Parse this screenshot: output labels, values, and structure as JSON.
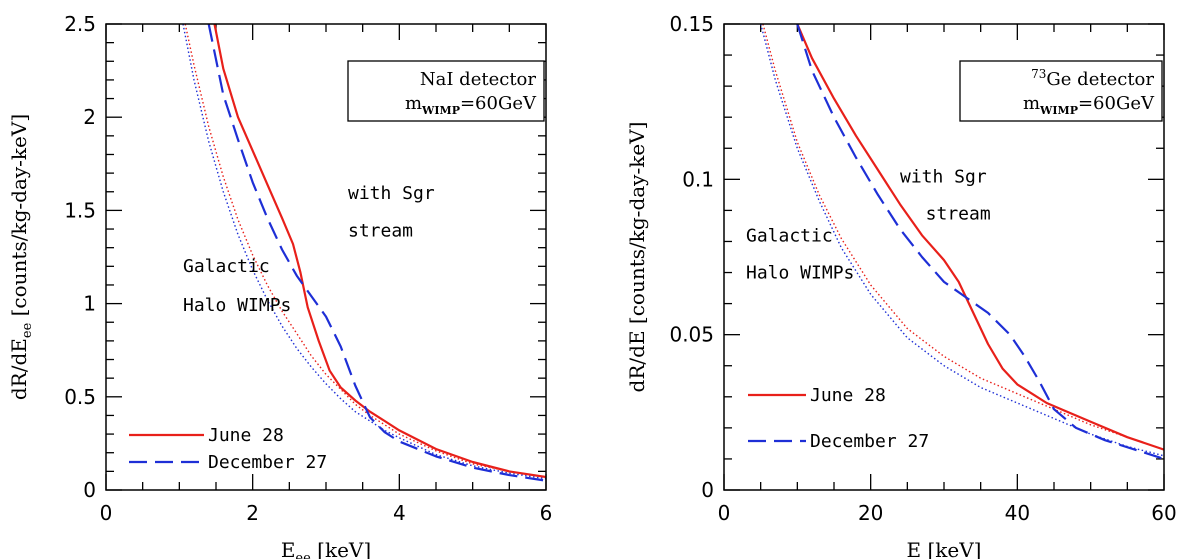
{
  "chart_data": [
    {
      "type": "line",
      "xlabel": "E",
      "xlabel_sub": "ee",
      "xlabel_unit": " [keV]",
      "ylabel": "dR/dE",
      "ylabel_sub": "ee",
      "ylabel_unit": " [counts/kg-day-keV]",
      "xlim": [
        0,
        6
      ],
      "ylim": [
        0,
        2.5
      ],
      "xticks": [
        0,
        2,
        4,
        6
      ],
      "xtick_labels": [
        "0",
        "2",
        "4",
        "6"
      ],
      "yticks": [
        0,
        0.5,
        1,
        1.5,
        2,
        2.5
      ],
      "ytick_labels": [
        "0",
        "0.5",
        "1",
        "1.5",
        "2",
        "2.5"
      ],
      "box": {
        "line1": "NaI detector",
        "line2_main": "m",
        "line2_sub": "WIMP",
        "line2_rest": "=60GeV"
      },
      "annotations": [
        {
          "text": "with Sgr",
          "x": 3.3,
          "y": 1.56
        },
        {
          "text": "stream",
          "x": 3.3,
          "y": 1.36
        },
        {
          "text": "Galactic",
          "x": 1.05,
          "y": 1.17
        },
        {
          "text": "Halo WIMPs",
          "x": 1.05,
          "y": 0.96
        }
      ],
      "legend": [
        {
          "label": "June 28",
          "style": "solid",
          "color": "#e8201a"
        },
        {
          "label": "December 27",
          "style": "dashed",
          "color": "#1e2fd6"
        }
      ],
      "series": [
        {
          "name": "June 28",
          "style": "solid",
          "color": "#e8201a",
          "x": [
            1.48,
            1.6,
            1.8,
            2.0,
            2.2,
            2.4,
            2.55,
            2.65,
            2.75,
            2.9,
            3.05,
            3.2,
            3.4,
            3.6,
            3.8,
            4.0,
            4.5,
            5.0,
            5.5,
            6.0
          ],
          "y": [
            2.5,
            2.26,
            2.0,
            1.82,
            1.64,
            1.46,
            1.32,
            1.17,
            0.98,
            0.8,
            0.64,
            0.55,
            0.48,
            0.42,
            0.37,
            0.32,
            0.22,
            0.15,
            0.1,
            0.07
          ]
        },
        {
          "name": "December 27",
          "style": "dashed",
          "color": "#1e2fd6",
          "x": [
            1.4,
            1.6,
            1.8,
            2.0,
            2.2,
            2.4,
            2.6,
            2.8,
            3.0,
            3.2,
            3.4,
            3.6,
            3.8,
            4.0,
            4.5,
            5.0,
            5.5,
            6.0
          ],
          "y": [
            2.5,
            2.12,
            1.88,
            1.65,
            1.46,
            1.29,
            1.15,
            1.04,
            0.93,
            0.77,
            0.56,
            0.39,
            0.31,
            0.26,
            0.18,
            0.12,
            0.08,
            0.05
          ]
        },
        {
          "style": "dotted",
          "color": "#e8201a",
          "x": [
            1.08,
            1.2,
            1.4,
            1.6,
            1.8,
            2.0,
            2.2,
            2.4,
            2.6,
            2.8,
            3.0,
            3.2,
            3.4,
            3.6,
            3.8,
            4.0,
            4.5,
            5.0,
            5.5,
            6.0
          ],
          "y": [
            2.5,
            2.28,
            1.95,
            1.68,
            1.45,
            1.26,
            1.1,
            0.96,
            0.84,
            0.72,
            0.62,
            0.54,
            0.46,
            0.4,
            0.35,
            0.3,
            0.21,
            0.14,
            0.1,
            0.07
          ]
        },
        {
          "style": "dotted",
          "color": "#1e2fd6",
          "x": [
            1.05,
            1.2,
            1.4,
            1.6,
            1.8,
            2.0,
            2.2,
            2.4,
            2.6,
            2.8,
            3.0,
            3.2,
            3.4,
            3.6,
            3.8,
            4.0,
            4.5,
            5.0,
            5.5,
            6.0
          ],
          "y": [
            2.5,
            2.2,
            1.87,
            1.6,
            1.37,
            1.18,
            1.02,
            0.88,
            0.76,
            0.66,
            0.57,
            0.49,
            0.42,
            0.37,
            0.32,
            0.28,
            0.19,
            0.13,
            0.09,
            0.06
          ]
        }
      ]
    },
    {
      "type": "line",
      "xlabel": "E",
      "xlabel_sub": "",
      "xlabel_unit": " [keV]",
      "ylabel": "dR/dE",
      "ylabel_sub": "",
      "ylabel_unit": " [counts/kg-day-keV]",
      "xlim": [
        0,
        60
      ],
      "ylim": [
        0,
        0.15
      ],
      "xticks": [
        0,
        20,
        40,
        60
      ],
      "xtick_labels": [
        "0",
        "20",
        "40",
        "60"
      ],
      "yticks": [
        0,
        0.05,
        0.1,
        0.15
      ],
      "ytick_labels": [
        "0",
        "0.05",
        "0.1",
        "0.15"
      ],
      "box": {
        "line1_sup": "73",
        "line1": "Ge detector",
        "line2_main": "m",
        "line2_sub": "WIMP",
        "line2_rest": "=60GeV"
      },
      "annotations": [
        {
          "text": "with Sgr",
          "x": 24.0,
          "y": 0.099
        },
        {
          "text": "stream",
          "x": 27.5,
          "y": 0.087
        },
        {
          "text": "Galactic",
          "x": 3.0,
          "y": 0.08
        },
        {
          "text": "Halo WIMPs",
          "x": 3.0,
          "y": 0.068
        }
      ],
      "legend": [
        {
          "label": "June 28",
          "style": "solid",
          "color": "#e8201a"
        },
        {
          "label": "December 27",
          "style": "dashed",
          "color": "#1e2fd6"
        }
      ],
      "series": [
        {
          "name": "June 28",
          "style": "solid",
          "color": "#e8201a",
          "x": [
            10.0,
            12.0,
            15.0,
            18.0,
            21.0,
            24.0,
            27.0,
            30.0,
            32.0,
            34.0,
            36.0,
            38.0,
            40.0,
            42.0,
            44.0,
            46.0,
            50.0,
            55.0,
            60.0
          ],
          "y": [
            0.15,
            0.139,
            0.126,
            0.114,
            0.103,
            0.092,
            0.082,
            0.074,
            0.067,
            0.057,
            0.047,
            0.039,
            0.034,
            0.031,
            0.028,
            0.026,
            0.022,
            0.017,
            0.013
          ]
        },
        {
          "name": "December 27",
          "style": "dashed",
          "color": "#1e2fd6",
          "x": [
            10.0,
            12.0,
            15.0,
            18.0,
            21.0,
            24.0,
            27.0,
            30.0,
            33.0,
            36.0,
            39.0,
            41.0,
            43.0,
            45.0,
            48.0,
            52.0,
            56.0,
            60.0
          ],
          "y": [
            0.15,
            0.135,
            0.12,
            0.107,
            0.095,
            0.084,
            0.075,
            0.067,
            0.062,
            0.057,
            0.05,
            0.043,
            0.035,
            0.026,
            0.02,
            0.016,
            0.013,
            0.01
          ]
        },
        {
          "style": "dotted",
          "color": "#e8201a",
          "x": [
            5.3,
            7.0,
            10.0,
            13.0,
            16.0,
            20.0,
            25.0,
            30.0,
            35.0,
            40.0,
            45.0,
            50.0,
            55.0,
            60.0
          ],
          "y": [
            0.15,
            0.135,
            0.112,
            0.095,
            0.081,
            0.066,
            0.052,
            0.043,
            0.036,
            0.031,
            0.026,
            0.021,
            0.017,
            0.013
          ]
        },
        {
          "style": "dotted",
          "color": "#1e2fd6",
          "x": [
            5.0,
            7.0,
            10.0,
            13.0,
            16.0,
            20.0,
            25.0,
            30.0,
            35.0,
            40.0,
            45.0,
            50.0,
            55.0,
            60.0
          ],
          "y": [
            0.15,
            0.132,
            0.11,
            0.093,
            0.078,
            0.063,
            0.049,
            0.04,
            0.033,
            0.028,
            0.023,
            0.018,
            0.014,
            0.011
          ]
        }
      ]
    }
  ]
}
